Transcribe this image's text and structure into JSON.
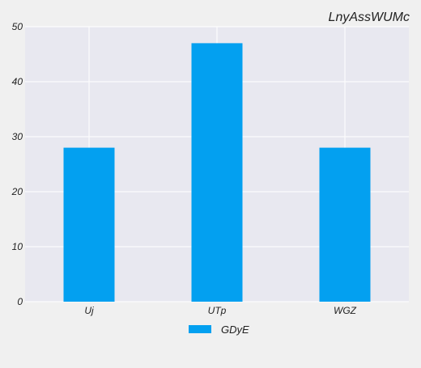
{
  "chart_data": {
    "type": "bar",
    "title": "LnyAssWUMc",
    "categories": [
      "Uj",
      "UTp",
      "WGZ"
    ],
    "series": [
      {
        "name": "GDyE",
        "values": [
          28,
          47,
          28
        ]
      }
    ],
    "xlabel": "",
    "ylabel": "",
    "ylim": [
      0,
      50
    ],
    "yticks": [
      0,
      10,
      20,
      30,
      40,
      50
    ],
    "grid": true,
    "legend_position": "bottom-center",
    "colors": {
      "bar": "#03a0f0",
      "plot_background": "#e8e8f0",
      "page_background": "#f0f0f0",
      "grid": "#ffffff",
      "text": "#222222"
    }
  }
}
